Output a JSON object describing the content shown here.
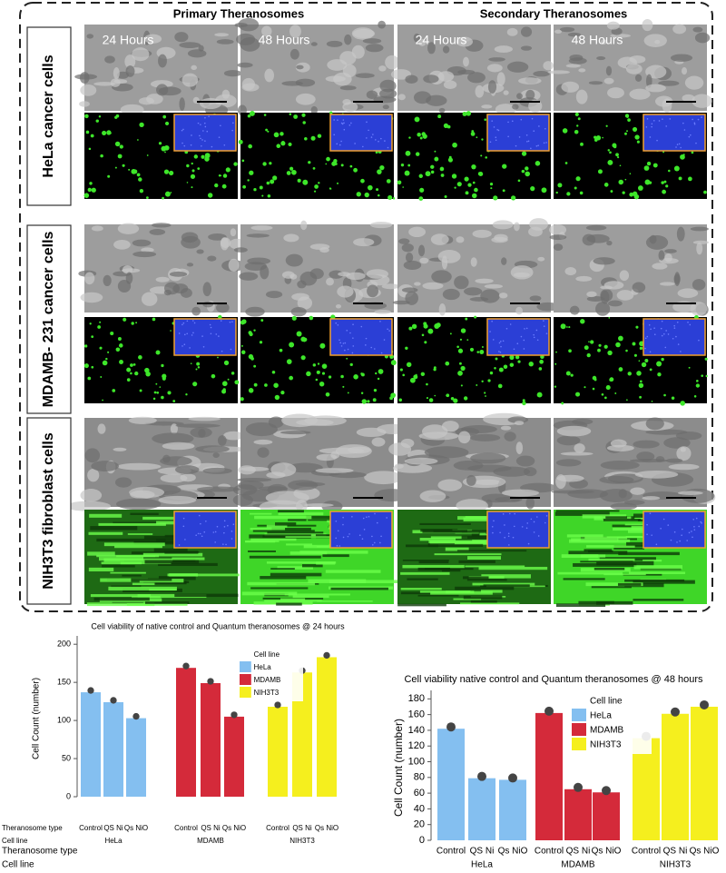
{
  "figure": {
    "column_headers": [
      "Primary Theranosomes",
      "Secondary Theranosomes"
    ],
    "row_labels": [
      "HeLa cancer cells",
      "MDAMB- 231 cancer cells",
      "NIH3T3 fibroblast cells"
    ],
    "time_labels": [
      "24 Hours",
      "48 Hours",
      "24 Hours",
      "48 Hours"
    ]
  },
  "chart_data": [
    {
      "type": "bar",
      "title": "Cell viability of native control and Quantum theranosomes @ 24 hours",
      "y_label": "Cell Count (number)",
      "row_labels": [
        "Theranosome type",
        "Cell line"
      ],
      "types": [
        "Control",
        "QS Ni",
        "Qs NiO"
      ],
      "legend_title": "Cell line",
      "series": [
        {
          "name": "HeLa",
          "color": "#84bff0",
          "values": [
            137,
            124,
            103
          ]
        },
        {
          "name": "MDAMB",
          "color": "#d42a3a",
          "values": [
            169,
            149,
            105
          ]
        },
        {
          "name": "NIH3T3",
          "color": "#f5ef1e",
          "values": [
            118,
            163,
            183
          ]
        }
      ],
      "ylim": [
        0,
        205
      ],
      "yticks": [
        0,
        50,
        100,
        150,
        200
      ]
    },
    {
      "type": "bar",
      "title": "Cell viability native control and Quantum theranosomes @ 48 hours",
      "y_label": "Cell Count (number)",
      "row_labels": [
        "Theranosome type",
        "Cell line"
      ],
      "types": [
        "Control",
        "QS Ni",
        "Qs NiO"
      ],
      "legend_title": "Cell line",
      "series": [
        {
          "name": "HeLa",
          "color": "#84bff0",
          "values": [
            142,
            79,
            77
          ]
        },
        {
          "name": "MDAMB",
          "color": "#d42a3a",
          "values": [
            162,
            65,
            61
          ]
        },
        {
          "name": "NIH3T3",
          "color": "#f5ef1e",
          "values": [
            130,
            161,
            170
          ]
        }
      ],
      "ylim": [
        0,
        185
      ],
      "yticks": [
        0,
        20,
        40,
        60,
        80,
        100,
        120,
        140,
        160,
        180
      ]
    }
  ]
}
